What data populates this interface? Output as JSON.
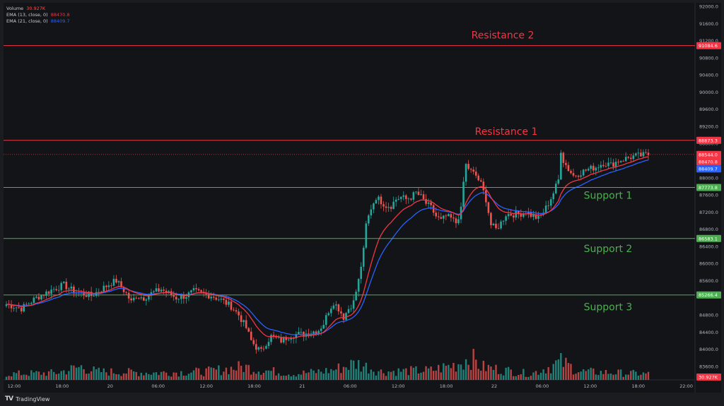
{
  "legend": {
    "volume_label": "Volume",
    "volume_value": "30.927K",
    "ema13_label": "EMA (13, close, 0)",
    "ema13_value": "88470.8",
    "ema21_label": "EMA (21, close, 0)",
    "ema21_value": "88409.7"
  },
  "brand": {
    "name": "TradingView"
  },
  "colors": {
    "up": "#26a69a",
    "down": "#ef5350",
    "ema13": "#f23645",
    "ema21": "#2962ff",
    "resistance": "#f23645",
    "support": "#4caf50"
  },
  "chart_data": {
    "type": "candlestick",
    "y_axis": {
      "min": 83200,
      "max": 92000,
      "ticks": [
        "92000.0",
        "91600.0",
        "91200.0",
        "90800.0",
        "90400.0",
        "90000.0",
        "89600.0",
        "89200.0",
        "88800.0",
        "88000.0",
        "87600.0",
        "87200.0",
        "86800.0",
        "86400.0",
        "86000.0",
        "85600.0",
        "84800.0",
        "84400.0",
        "84000.0",
        "83600.0"
      ]
    },
    "x_axis": {
      "ticks": [
        "12:00",
        "18:00",
        "20",
        "06:00",
        "12:00",
        "18:00",
        "21",
        "06:00",
        "12:00",
        "18:00",
        "22",
        "06:00",
        "12:00",
        "18:00",
        "22:00"
      ]
    },
    "levels": [
      {
        "label": "Resistance 2",
        "price": 91084.6,
        "price_label": "91084.6",
        "kind": "resistance"
      },
      {
        "label": "Resistance 1",
        "price": 88873.3,
        "price_label": "88873.3",
        "kind": "resistance"
      },
      {
        "label": "Support 1",
        "price": 87773.8,
        "price_label": "87773.8",
        "kind": "support"
      },
      {
        "label": "Support 2",
        "price": 86583.1,
        "price_label": "86583.1",
        "kind": "support"
      },
      {
        "label": "Support 3",
        "price": 85266.4,
        "price_label": "85266.4",
        "kind": "support"
      }
    ],
    "last_price": {
      "price": 88544.0,
      "price_label": "88544.0",
      "countdown": "10:13"
    },
    "ema13_last": {
      "price": 88470.8,
      "price_label": "88470.8"
    },
    "ema21_last": {
      "price": 88409.7,
      "price_label": "88409.7"
    },
    "volume_last": {
      "label": "30.927K"
    },
    "price_path": [
      [
        0,
        85050
      ],
      [
        6,
        84950
      ],
      [
        12,
        85200
      ],
      [
        18,
        85380
      ],
      [
        23,
        85500
      ],
      [
        27,
        85350
      ],
      [
        30,
        85300
      ],
      [
        34,
        85250
      ],
      [
        38,
        85400
      ],
      [
        42,
        85550
      ],
      [
        44,
        85600
      ],
      [
        48,
        85300
      ],
      [
        50,
        85100
      ],
      [
        52,
        85250
      ],
      [
        55,
        85200
      ],
      [
        58,
        85300
      ],
      [
        62,
        85400
      ],
      [
        65,
        85300
      ],
      [
        68,
        85200
      ],
      [
        72,
        85250
      ],
      [
        75,
        85350
      ],
      [
        78,
        85300
      ],
      [
        82,
        85250
      ],
      [
        86,
        85150
      ],
      [
        90,
        85000
      ],
      [
        93,
        84800
      ],
      [
        96,
        84500
      ],
      [
        98,
        84200
      ],
      [
        100,
        84050
      ],
      [
        102,
        83950
      ],
      [
        104,
        84150
      ],
      [
        106,
        84300
      ],
      [
        108,
        84250
      ],
      [
        110,
        84200
      ],
      [
        113,
        84300
      ],
      [
        116,
        84350
      ],
      [
        119,
        84350
      ],
      [
        122,
        84400
      ],
      [
        125,
        84450
      ],
      [
        127,
        84600
      ],
      [
        129,
        84900
      ],
      [
        131,
        85100
      ],
      [
        133,
        84950
      ],
      [
        135,
        84750
      ],
      [
        137,
        84950
      ],
      [
        139,
        85100
      ],
      [
        141,
        85600
      ],
      [
        143,
        86300
      ],
      [
        144,
        86900
      ],
      [
        146,
        87300
      ],
      [
        148,
        87550
      ],
      [
        150,
        87450
      ],
      [
        152,
        87350
      ],
      [
        154,
        87350
      ],
      [
        156,
        87500
      ],
      [
        158,
        87550
      ],
      [
        160,
        87500
      ],
      [
        162,
        87550
      ],
      [
        164,
        87650
      ],
      [
        166,
        87550
      ],
      [
        168,
        87400
      ],
      [
        170,
        87300
      ],
      [
        172,
        87100
      ],
      [
        174,
        87000
      ],
      [
        176,
        87100
      ],
      [
        178,
        87050
      ],
      [
        180,
        86950
      ],
      [
        182,
        87250
      ],
      [
        183,
        87900
      ],
      [
        184,
        88300
      ],
      [
        186,
        88150
      ],
      [
        188,
        88050
      ],
      [
        190,
        87850
      ],
      [
        192,
        87500
      ],
      [
        194,
        86900
      ],
      [
        196,
        86800
      ],
      [
        198,
        86950
      ],
      [
        200,
        87150
      ],
      [
        202,
        87150
      ],
      [
        205,
        87150
      ],
      [
        208,
        87200
      ],
      [
        211,
        87100
      ],
      [
        213,
        87050
      ],
      [
        215,
        87200
      ],
      [
        217,
        87400
      ],
      [
        219,
        87650
      ],
      [
        221,
        87950
      ],
      [
        222,
        88650
      ],
      [
        223,
        88400
      ],
      [
        225,
        88200
      ],
      [
        227,
        88050
      ],
      [
        229,
        88100
      ],
      [
        231,
        88150
      ],
      [
        233,
        88200
      ],
      [
        236,
        88250
      ],
      [
        239,
        88350
      ],
      [
        242,
        88300
      ],
      [
        245,
        88400
      ],
      [
        248,
        88450
      ],
      [
        251,
        88500
      ],
      [
        254,
        88520
      ],
      [
        257,
        88544
      ]
    ],
    "volume_profile": [
      [
        0,
        0.25
      ],
      [
        20,
        0.3
      ],
      [
        30,
        0.55
      ],
      [
        36,
        0.35
      ],
      [
        60,
        0.3
      ],
      [
        80,
        0.35
      ],
      [
        95,
        0.55
      ],
      [
        100,
        0.45
      ],
      [
        115,
        0.25
      ],
      [
        130,
        0.4
      ],
      [
        140,
        0.7
      ],
      [
        150,
        0.35
      ],
      [
        170,
        0.4
      ],
      [
        180,
        0.65
      ],
      [
        186,
        0.95
      ],
      [
        190,
        0.55
      ],
      [
        200,
        0.4
      ],
      [
        210,
        0.25
      ],
      [
        222,
        0.75
      ],
      [
        230,
        0.35
      ],
      [
        257,
        0.25
      ]
    ]
  }
}
